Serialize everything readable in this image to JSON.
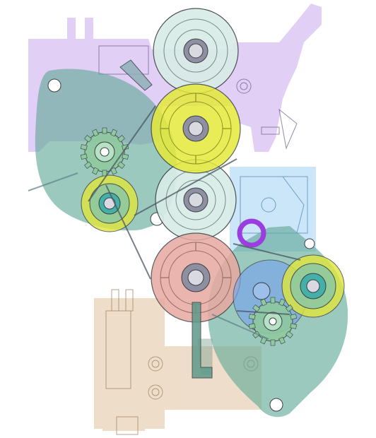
{
  "figure": {
    "kind": "cad-assembly-xray",
    "background": "#ffffff",
    "stroke": "#3a3f44"
  },
  "parts": {
    "bracket_purple": {
      "color": "#c9a8f0"
    },
    "bracket_blue": {
      "color": "#a9d4f5"
    },
    "bracket_tan": {
      "color": "#d9b48a"
    },
    "gear_plate_upper": {
      "color": "#5fa896"
    },
    "gear_plate_lower": {
      "color": "#5fa896"
    },
    "roller_top": {
      "color": "#d8ece6"
    },
    "roller_mid": {
      "color": "#d8ece6"
    },
    "pulley_yellow": {
      "color": "#e5ea3a"
    },
    "pulley_yellow_small": {
      "color": "#e0e63c"
    },
    "pulley_pink": {
      "color": "#e7a9a0"
    },
    "pulley_blue": {
      "color": "#7aa7e8"
    },
    "ring_purple": {
      "color": "#9b3ee0"
    },
    "gear_small": {
      "color": "#8fc9a0"
    },
    "hub": {
      "color": "#8e8fa0"
    }
  }
}
